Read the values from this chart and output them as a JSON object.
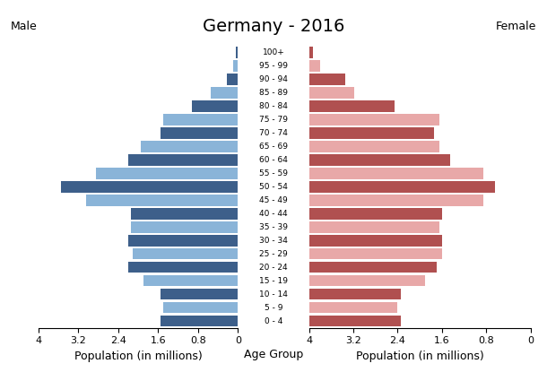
{
  "title": "Germany - 2016",
  "xlabel_left": "Population (in millions)",
  "xlabel_center": "Age Group",
  "xlabel_right": "Population (in millions)",
  "label_left": "Male",
  "label_right": "Female",
  "age_groups": [
    "0 - 4",
    "5 - 9",
    "10 - 14",
    "15 - 19",
    "20 - 24",
    "25 - 29",
    "30 - 34",
    "35 - 39",
    "40 - 44",
    "45 - 49",
    "50 - 54",
    "55 - 59",
    "60 - 64",
    "65 - 69",
    "70 - 74",
    "75 - 79",
    "80 - 84",
    "85 - 89",
    "90 - 94",
    "95 - 99",
    "100+"
  ],
  "male_values": [
    1.55,
    1.5,
    1.55,
    1.9,
    2.2,
    2.1,
    2.2,
    2.15,
    2.15,
    3.05,
    3.55,
    2.85,
    2.2,
    1.95,
    1.55,
    1.5,
    0.93,
    0.55,
    0.22,
    0.1,
    0.04
  ],
  "female_values": [
    1.65,
    1.6,
    1.65,
    2.1,
    2.3,
    2.4,
    2.4,
    2.35,
    2.4,
    3.15,
    3.35,
    3.15,
    2.55,
    2.35,
    2.25,
    2.35,
    1.55,
    0.82,
    0.65,
    0.2,
    0.07
  ],
  "male_color_dark": "#3d5f8a",
  "male_color_light": "#8ab4d8",
  "female_color_dark": "#b05050",
  "female_color_light": "#e8a8a8",
  "xlim": 4.0,
  "xticks_left": [
    4.0,
    3.2,
    2.4,
    1.6,
    0.8,
    0
  ],
  "xticks_right": [
    0,
    0.8,
    1.6,
    2.4,
    3.2,
    4.0
  ],
  "xtick_labels": [
    "4",
    "3.2",
    "2.4",
    "1.6",
    "0.8",
    "0"
  ],
  "background_color": "#ffffff",
  "title_fontsize": 14,
  "axis_label_fontsize": 9,
  "bar_height": 0.85
}
